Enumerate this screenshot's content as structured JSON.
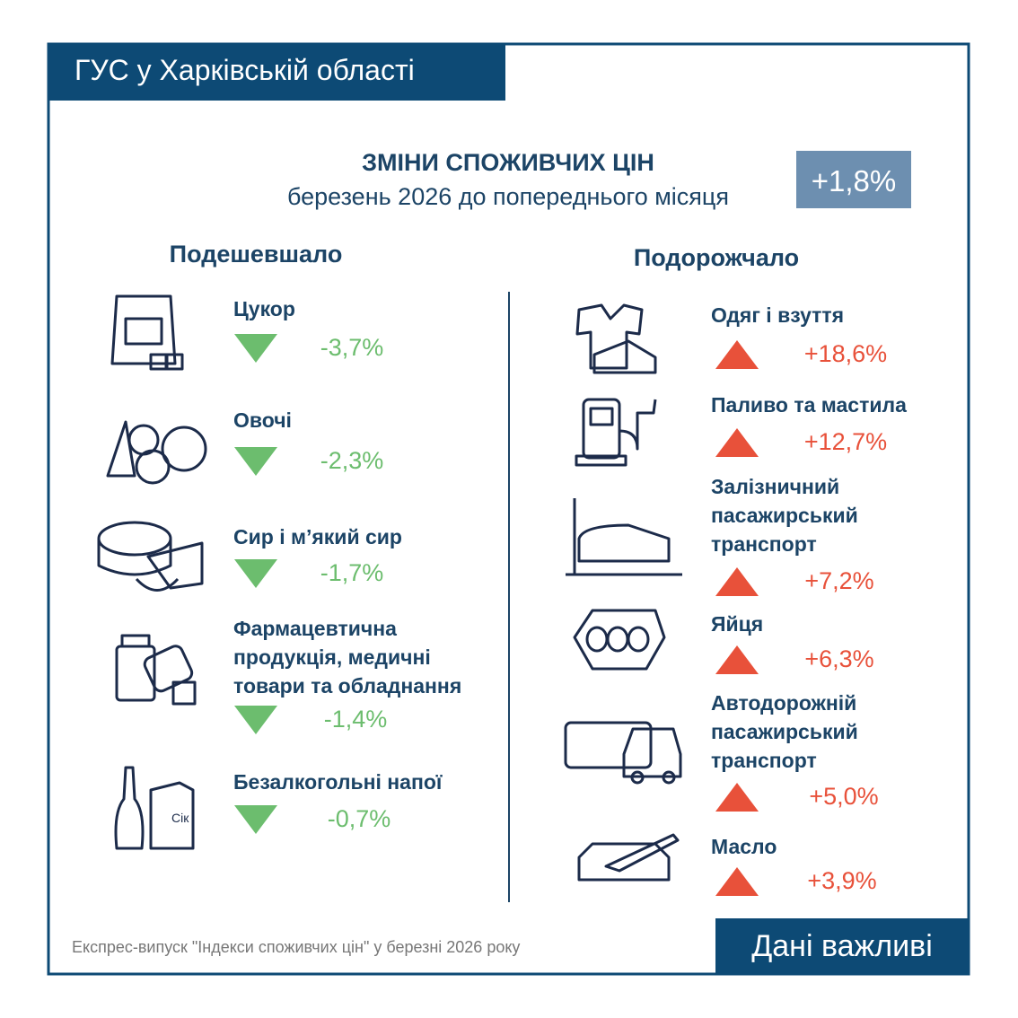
{
  "header": {
    "title": "ГУС у Харківській області"
  },
  "headline": {
    "title": "ЗМІНИ СПОЖИВЧИХ ЦІН",
    "subtitle": "березень 2026 до попереднього місяця",
    "total": "+1,8%"
  },
  "decreased": {
    "title": "Подешевшало",
    "items": [
      {
        "label_lines": [
          "Цукор"
        ],
        "change": "-3,7%"
      },
      {
        "label_lines": [
          "Овочі"
        ],
        "change": "-2,3%"
      },
      {
        "label_lines": [
          "Сир і м’який сир"
        ],
        "change": "-1,7%"
      },
      {
        "label_lines": [
          "Фармацевтична",
          "продукція, медичні",
          "товари та обладнання"
        ],
        "change": "-1,4%"
      },
      {
        "label_lines": [
          "Безалкогольні напої"
        ],
        "change": "-0,7%",
        "icon_text": "Сік"
      }
    ]
  },
  "increased": {
    "title": "Подорожчало",
    "items": [
      {
        "label_lines": [
          "Одяг і взуття"
        ],
        "change": "+18,6%"
      },
      {
        "label_lines": [
          "Паливо та мастила"
        ],
        "change": "+12,7%"
      },
      {
        "label_lines": [
          "Залізничний",
          "пасажирський",
          "транспорт"
        ],
        "change": "+7,2%"
      },
      {
        "label_lines": [
          "Яйця"
        ],
        "change": "+6,3%"
      },
      {
        "label_lines": [
          "Автодорожній",
          "пасажирський",
          "транспорт"
        ],
        "change": "+5,0%"
      },
      {
        "label_lines": [
          "Масло"
        ],
        "change": "+3,9%"
      }
    ]
  },
  "footer": {
    "source": "Експрес-випуск \"Індекси споживчих цін\" у березні 2026 року",
    "slogan": "Дані важливі"
  }
}
